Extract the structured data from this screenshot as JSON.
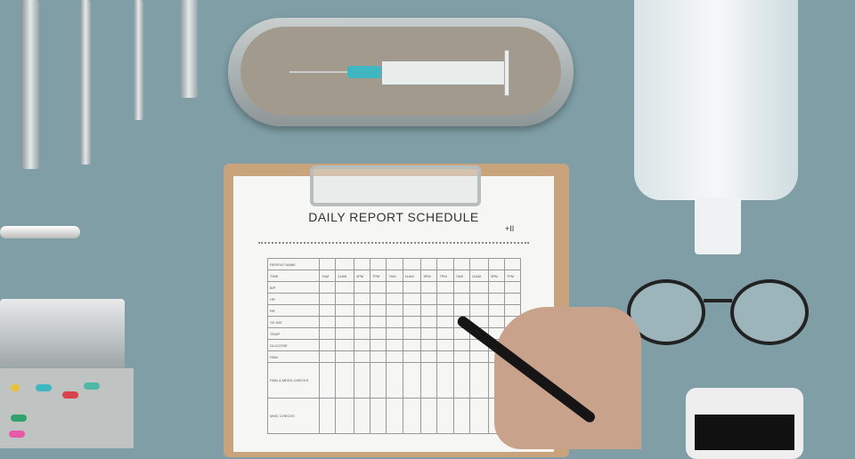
{
  "document": {
    "title": "DAILY REPORT SCHEDULE",
    "logo": "+II",
    "row_labels": [
      "PATIENT NAME",
      "TIME",
      "B/P",
      "HR",
      "RR",
      "O2 SAT",
      "TEMP",
      "GLUCOSE",
      "PAIN",
      "PAIN & MEDS CHECKS",
      "MISC CHECKS"
    ],
    "times": [
      "7AM",
      "11AM",
      "3PM",
      "7PM",
      "7AM",
      "11AM",
      "3PM",
      "7PM",
      "7AM",
      "11AM",
      "3PM",
      "7PM"
    ]
  },
  "colors": {
    "background": "#7f9ea6",
    "clipboard": "#c8a37b",
    "syringe_hub": "#3fb6c0"
  }
}
